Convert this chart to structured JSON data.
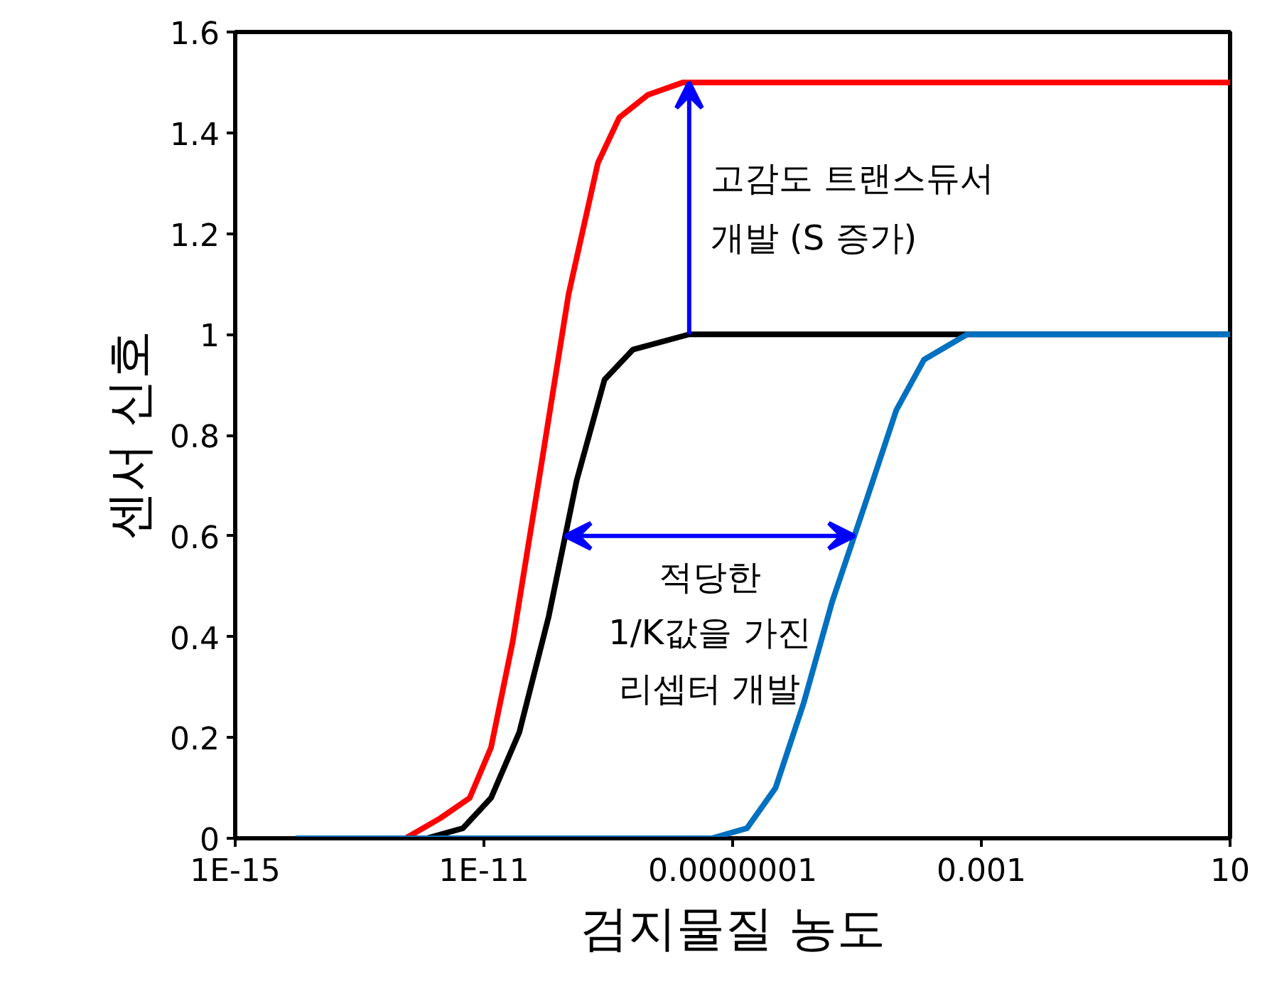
{
  "chart_data": {
    "type": "line",
    "xlabel": "검지물질 농도",
    "ylabel": "센서 신호",
    "log": "x",
    "grid": false,
    "marker": "none",
    "line_style": "solid",
    "xlim": [
      1e-15,
      10
    ],
    "xticks": [
      {
        "value": 1e-15,
        "label": "1E-15"
      },
      {
        "value": 1e-11,
        "label": "1E-11"
      },
      {
        "value": 1e-07,
        "label": "0.0000001"
      },
      {
        "value": 0.001,
        "label": "0.001"
      },
      10
    ],
    "ylim": [
      0,
      1.6
    ],
    "yticks": [
      0,
      0.2,
      0.4,
      0.6,
      0.8,
      1,
      1.2,
      1.4,
      1.6
    ],
    "series": [
      {
        "color": "#ff0000",
        "x": [
          9.5e-15,
          5.5e-13,
          2e-12,
          5.9e-12,
          1.3e-11,
          2.9e-11,
          8.1e-11,
          2.3e-10,
          6.8e-10,
          1.5e-09,
          4.3e-09,
          1.6e-08,
          10
        ],
        "values": [
          0,
          0,
          0.04,
          0.08,
          0.18,
          0.39,
          0.73,
          1.08,
          1.34,
          1.43,
          1.475,
          1.5,
          1.5
        ]
      },
      {
        "color": "#000000",
        "x": [
          9.5e-15,
          1.2e-12,
          4.6e-12,
          1.3e-11,
          3.7e-11,
          1.1e-10,
          3.1e-10,
          8.7e-10,
          2.5e-09,
          2e-08,
          10
        ],
        "values": [
          0,
          0,
          0.02,
          0.08,
          0.21,
          0.44,
          0.71,
          0.91,
          0.97,
          1.0,
          1.0
        ]
      },
      {
        "color": "#0070c0",
        "x": [
          9.5e-15,
          4.6e-08,
          1.7e-07,
          4.9e-07,
          1.4e-06,
          4e-06,
          1.5e-05,
          4.3e-05,
          0.00012,
          0.00059,
          10
        ],
        "values": [
          0,
          0,
          0.02,
          0.1,
          0.27,
          0.47,
          0.68,
          0.85,
          0.95,
          1.0,
          1.0
        ]
      }
    ],
    "annotations": [
      "고감도 트랜스듀서\n개발 (S 증가)",
      "적당한\n1/K값을 가진\n리셉터 개발"
    ]
  }
}
